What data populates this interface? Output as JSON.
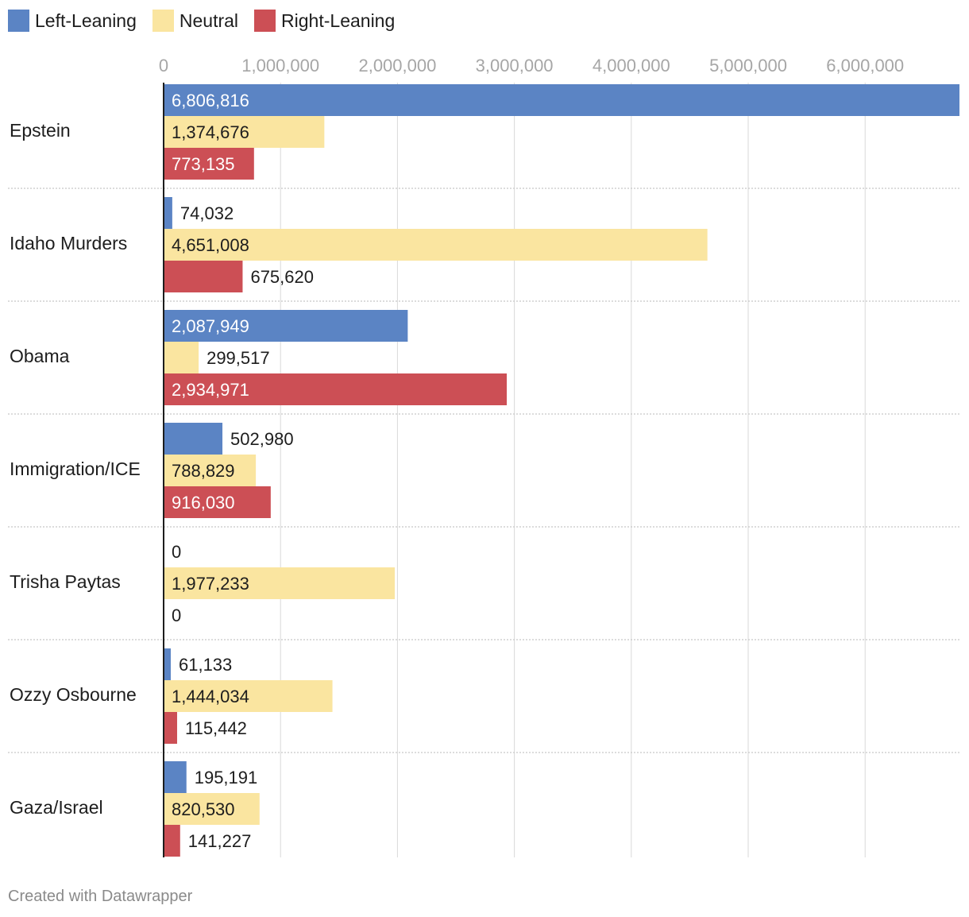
{
  "chart_data": {
    "type": "bar",
    "orientation": "horizontal",
    "categories": [
      "Epstein",
      "Idaho Murders",
      "Obama",
      "Immigration/ICE",
      "Trisha Paytas",
      "Ozzy Osbourne",
      "Gaza/Israel"
    ],
    "series": [
      {
        "name": "Left-Leaning",
        "color": "#5b84c4",
        "values": [
          6806816,
          74032,
          2087949,
          502980,
          0,
          61133,
          195191
        ],
        "labels": [
          "6,806,816",
          "74,032",
          "2,087,949",
          "502,980",
          "0",
          "61,133",
          "195,191"
        ]
      },
      {
        "name": "Neutral",
        "color": "#fae5a0",
        "values": [
          1374676,
          4651008,
          299517,
          788829,
          1977233,
          1444034,
          820530
        ],
        "labels": [
          "1,374,676",
          "4,651,008",
          "299,517",
          "788,829",
          "1,977,233",
          "1,444,034",
          "820,530"
        ]
      },
      {
        "name": "Right-Leaning",
        "color": "#cc4f55",
        "values": [
          773135,
          675620,
          2934971,
          916030,
          0,
          115442,
          141227
        ],
        "labels": [
          "773,135",
          "675,620",
          "2,934,971",
          "916,030",
          "0",
          "115,442",
          "141,227"
        ]
      }
    ],
    "xlim": [
      0,
      6806816
    ],
    "ticks": [
      0,
      1000000,
      2000000,
      3000000,
      4000000,
      5000000,
      6000000
    ],
    "tick_labels": [
      "0",
      "1,000,000",
      "2,000,000",
      "3,000,000",
      "4,000,000",
      "5,000,000",
      "6,000,000"
    ],
    "grid": true,
    "legend_position": "top-left"
  },
  "legend": [
    {
      "label": "Left-Leaning",
      "color": "#5b84c4"
    },
    {
      "label": "Neutral",
      "color": "#fae5a0"
    },
    {
      "label": "Right-Leaning",
      "color": "#cc4f55"
    }
  ],
  "footer": {
    "text": "Created with Datawrapper"
  }
}
